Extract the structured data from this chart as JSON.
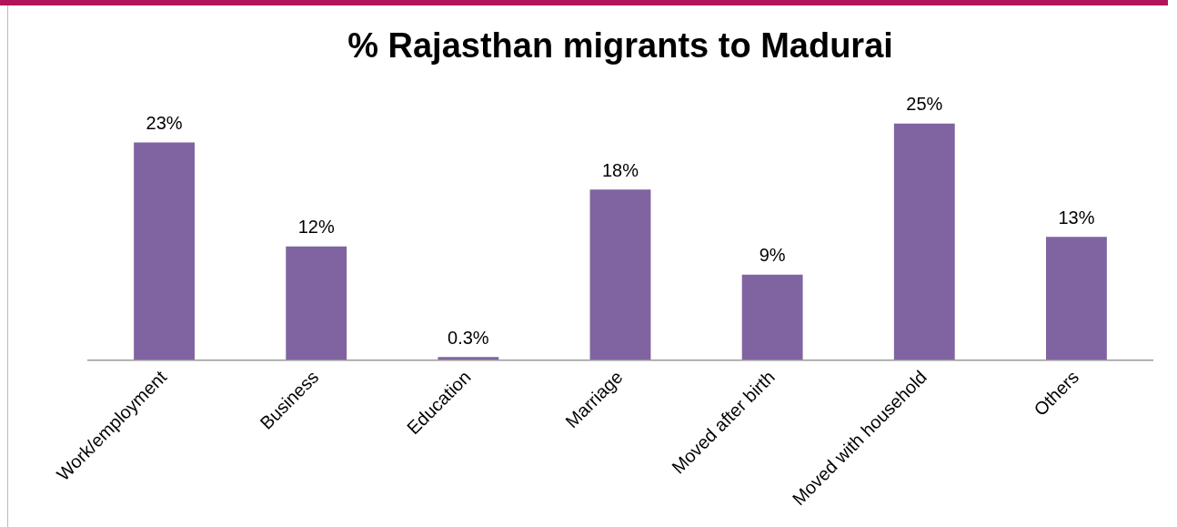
{
  "chart_data": {
    "type": "bar",
    "title": "% Rajasthan migrants to Madurai",
    "categories": [
      "Work/employment",
      "Business",
      "Education",
      "Marriage",
      "Moved after birth",
      "Moved with household",
      "Others"
    ],
    "values": [
      23,
      12,
      0.3,
      18,
      9,
      25,
      13
    ],
    "value_labels": [
      "23%",
      "12%",
      "0.3%",
      "18%",
      "9%",
      "25%",
      "13%"
    ],
    "color": "#8064a2",
    "grid": false,
    "legend": false
  }
}
